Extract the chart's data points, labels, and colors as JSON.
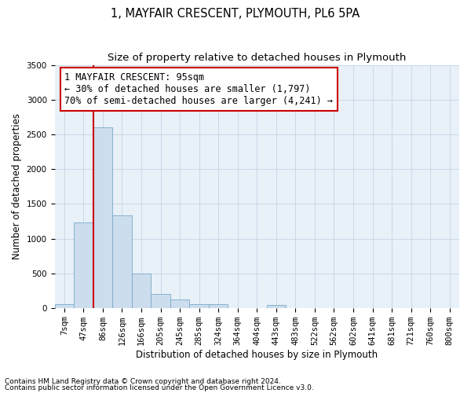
{
  "title": "1, MAYFAIR CRESCENT, PLYMOUTH, PL6 5PA",
  "subtitle": "Size of property relative to detached houses in Plymouth",
  "xlabel": "Distribution of detached houses by size in Plymouth",
  "ylabel": "Number of detached properties",
  "bin_labels": [
    "7sqm",
    "47sqm",
    "86sqm",
    "126sqm",
    "166sqm",
    "205sqm",
    "245sqm",
    "285sqm",
    "324sqm",
    "364sqm",
    "404sqm",
    "443sqm",
    "483sqm",
    "522sqm",
    "562sqm",
    "602sqm",
    "641sqm",
    "681sqm",
    "721sqm",
    "760sqm",
    "800sqm"
  ],
  "bar_values": [
    50,
    1230,
    2600,
    1340,
    500,
    200,
    120,
    50,
    50,
    0,
    0,
    40,
    0,
    0,
    0,
    0,
    0,
    0,
    0,
    0,
    0
  ],
  "bar_color": "#ccdded",
  "bar_edge_color": "#7aaac8",
  "vline_color": "#cc0000",
  "ylim": [
    0,
    3500
  ],
  "yticks": [
    0,
    500,
    1000,
    1500,
    2000,
    2500,
    3000,
    3500
  ],
  "annotation_line1": "1 MAYFAIR CRESCENT: 95sqm",
  "annotation_line2": "← 30% of detached houses are smaller (1,797)",
  "annotation_line3": "70% of semi-detached houses are larger (4,241) →",
  "annotation_box_color": "#cc0000",
  "footnote1": "Contains HM Land Registry data © Crown copyright and database right 2024.",
  "footnote2": "Contains public sector information licensed under the Open Government Licence v3.0.",
  "bg_color": "#ffffff",
  "plot_bg_color": "#e8f0f8",
  "grid_color": "#c5d5e5",
  "title_fontsize": 10.5,
  "subtitle_fontsize": 9.5,
  "axis_label_fontsize": 8.5,
  "tick_fontsize": 7.5,
  "annotation_fontsize": 8.5,
  "footnote_fontsize": 6.5,
  "vline_x_index": 2
}
